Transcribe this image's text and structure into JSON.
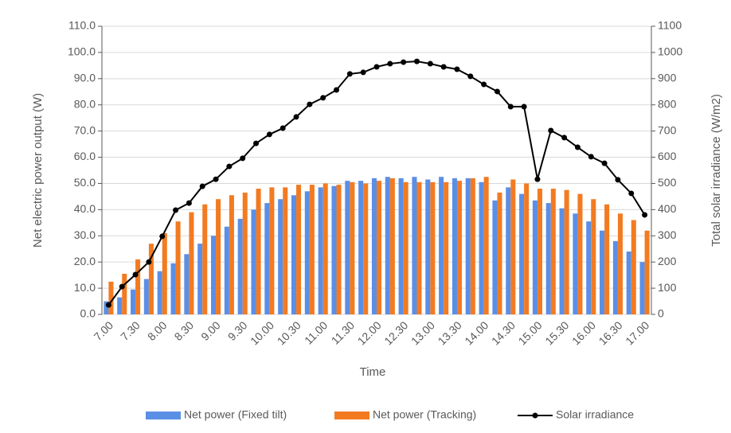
{
  "chart_data": {
    "type": "bar-line",
    "x_label": "Time",
    "y_label": "Net electric power output (W)",
    "y2_label": "Total solar irradiance (W/m2)",
    "categories": [
      "7.00",
      null,
      "7.30",
      null,
      "8.00",
      null,
      "8.30",
      null,
      "9.00",
      null,
      "9.30",
      null,
      "10.00",
      null,
      "10.30",
      null,
      "11.00",
      null,
      "11.30",
      null,
      "12.00",
      null,
      "12.30",
      null,
      "13.00",
      null,
      "13.30",
      null,
      "14.00",
      null,
      "14.30",
      null,
      "15.00",
      null,
      "15.30",
      null,
      "16.00",
      null,
      "16.30",
      null,
      "17.00"
    ],
    "series": [
      {
        "name": "Net power (Fixed tilt)",
        "color": "#5b8fe6",
        "type": "bar",
        "values": [
          5,
          6.5,
          9.5,
          13.5,
          16.5,
          19.5,
          23,
          27,
          30,
          33.5,
          36.5,
          40,
          42.5,
          44,
          45.5,
          47,
          48.5,
          49,
          51,
          51,
          52,
          52.5,
          52,
          52.5,
          51.5,
          52.5,
          52,
          52,
          50.5,
          43.5,
          48.5,
          46,
          43.5,
          42.5,
          40.5,
          38.5,
          35.5,
          32,
          28,
          24,
          20
        ]
      },
      {
        "name": "Net power (Tracking)",
        "color": "#f27b22",
        "type": "bar",
        "values": [
          12.5,
          15.5,
          21,
          27,
          31,
          35.5,
          39,
          42,
          44,
          45.5,
          46.5,
          48,
          48.5,
          48.5,
          49.5,
          49.5,
          50,
          49.5,
          50.5,
          50,
          51,
          52,
          50.5,
          50.5,
          50.5,
          50.5,
          51,
          52,
          52.5,
          46.5,
          51.5,
          50,
          48,
          48,
          47.5,
          46,
          44,
          42,
          38.5,
          36,
          32
        ]
      },
      {
        "name": "Solar irradiance",
        "color": "#000000",
        "type": "line",
        "axis": "y2",
        "values": [
          36,
          106,
          152,
          200,
          298,
          398,
          425,
          489,
          516,
          565,
          596,
          653,
          687,
          711,
          754,
          802,
          827,
          857,
          918,
          924,
          945,
          957,
          963,
          966,
          957,
          945,
          936,
          909,
          878,
          851,
          793,
          793,
          516,
          702,
          675,
          638,
          602,
          577,
          514,
          462,
          380
        ]
      }
    ],
    "ylim": [
      0,
      110
    ],
    "yticks": [
      {
        "value": 0,
        "label": "0.0"
      },
      {
        "value": 10,
        "label": "10.0"
      },
      {
        "value": 20,
        "label": "20.0"
      },
      {
        "value": 30,
        "label": "30.0"
      },
      {
        "value": 40,
        "label": "40.0"
      },
      {
        "value": 50,
        "label": "50.0"
      },
      {
        "value": 60,
        "label": "60.0"
      },
      {
        "value": 70,
        "label": "70.0"
      },
      {
        "value": 80,
        "label": "80.0"
      },
      {
        "value": 90,
        "label": "90.0"
      },
      {
        "value": 100,
        "label": "100.0"
      },
      {
        "value": 110,
        "label": "110.0"
      }
    ],
    "y2lim": [
      0,
      1100
    ],
    "y2ticks": [
      0,
      100,
      200,
      300,
      400,
      500,
      600,
      700,
      800,
      900,
      1000,
      1100
    ],
    "grid": true,
    "legend": "bottom"
  }
}
